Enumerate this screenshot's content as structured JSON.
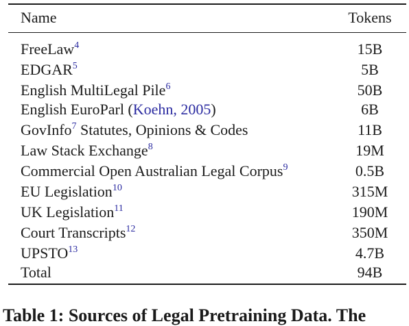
{
  "table": {
    "headers": {
      "name": "Name",
      "tokens": "Tokens"
    },
    "rows": [
      {
        "name": "FreeLaw",
        "sup": "4",
        "tokens": "15B"
      },
      {
        "name": "EDGAR",
        "sup": "5",
        "tokens": "5B"
      },
      {
        "name": "English MultiLegal Pile",
        "sup": "6",
        "tokens": "50B"
      },
      {
        "name": "English EuroParl (",
        "cite": "Koehn, 2005",
        "after": ")",
        "tokens": "6B"
      },
      {
        "name": "GovInfo",
        "sup": "7",
        "after": " Statutes, Opinions & Codes",
        "tokens": "11B"
      },
      {
        "name": "Law Stack Exchange",
        "sup": "8",
        "tokens": "19M"
      },
      {
        "name": "Commercial Open Australian Legal Corpus",
        "sup": "9",
        "tokens": "0.5B"
      },
      {
        "name": "EU Legislation",
        "sup": "10",
        "tokens": "315M"
      },
      {
        "name": "UK Legislation",
        "sup": "11",
        "tokens": "190M"
      },
      {
        "name": "Court Transcripts",
        "sup": "12",
        "tokens": "350M"
      },
      {
        "name": "UPSTO",
        "sup": "13",
        "tokens": "4.7B"
      },
      {
        "name": "Total",
        "tokens": "94B"
      }
    ]
  },
  "caption": "Table 1: Sources of Legal Pretraining Data. The"
}
